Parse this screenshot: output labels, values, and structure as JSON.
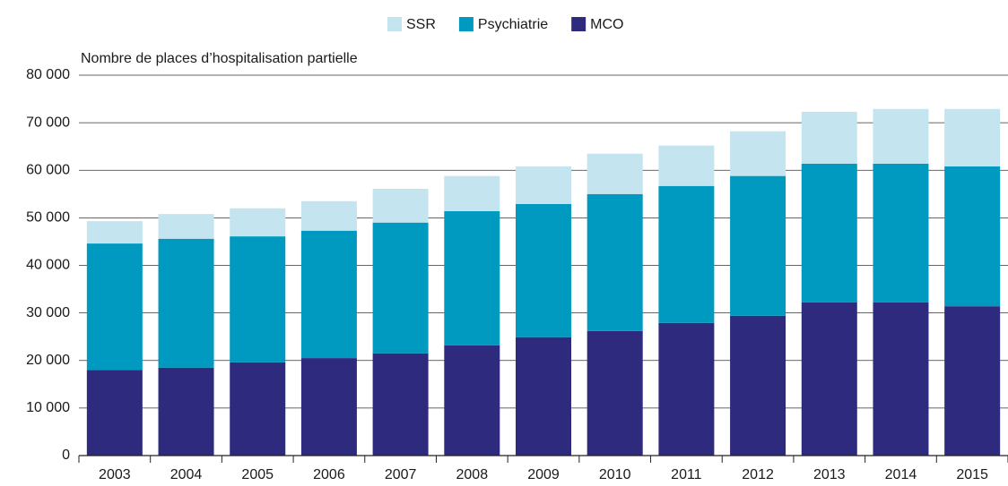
{
  "chart_data": {
    "type": "stacked_bar",
    "y_axis_label": "Nombre de places d’hospitalisation partielle",
    "categories": [
      "2003",
      "2004",
      "2005",
      "2006",
      "2007",
      "2008",
      "2009",
      "2010",
      "2011",
      "2012",
      "2013",
      "2014",
      "2015"
    ],
    "series": [
      {
        "name": "MCO",
        "color": "#2e2a7e",
        "values": [
          18000,
          18500,
          19600,
          20500,
          21500,
          23200,
          24900,
          26200,
          27900,
          29400,
          32200,
          32200,
          31400
        ]
      },
      {
        "name": "Psychiatrie",
        "color": "#0099c0",
        "values": [
          26600,
          27100,
          26500,
          26800,
          27500,
          28200,
          28000,
          28800,
          28800,
          29400,
          29200,
          29200,
          29400
        ]
      },
      {
        "name": "SSR",
        "color": "#c4e4ef",
        "values": [
          4700,
          5200,
          5900,
          6200,
          7100,
          7400,
          7900,
          8500,
          8500,
          9400,
          10900,
          11500,
          12100
        ]
      }
    ],
    "legend_order": [
      "SSR",
      "Psychiatrie",
      "MCO"
    ],
    "ylim": [
      0,
      80000
    ],
    "yticks": [
      0,
      {
        "value": 10000,
        "label": "10 000"
      },
      {
        "value": 20000,
        "label": "20 000"
      },
      {
        "value": 30000,
        "label": "30 000"
      },
      {
        "value": 40000,
        "label": "40 000"
      },
      {
        "value": 50000,
        "label": "50 000"
      },
      {
        "value": 60000,
        "label": "60 000"
      },
      {
        "value": 70000,
        "label": "70 000"
      },
      {
        "value": 80000,
        "label": "80 000"
      }
    ],
    "grid": true
  }
}
